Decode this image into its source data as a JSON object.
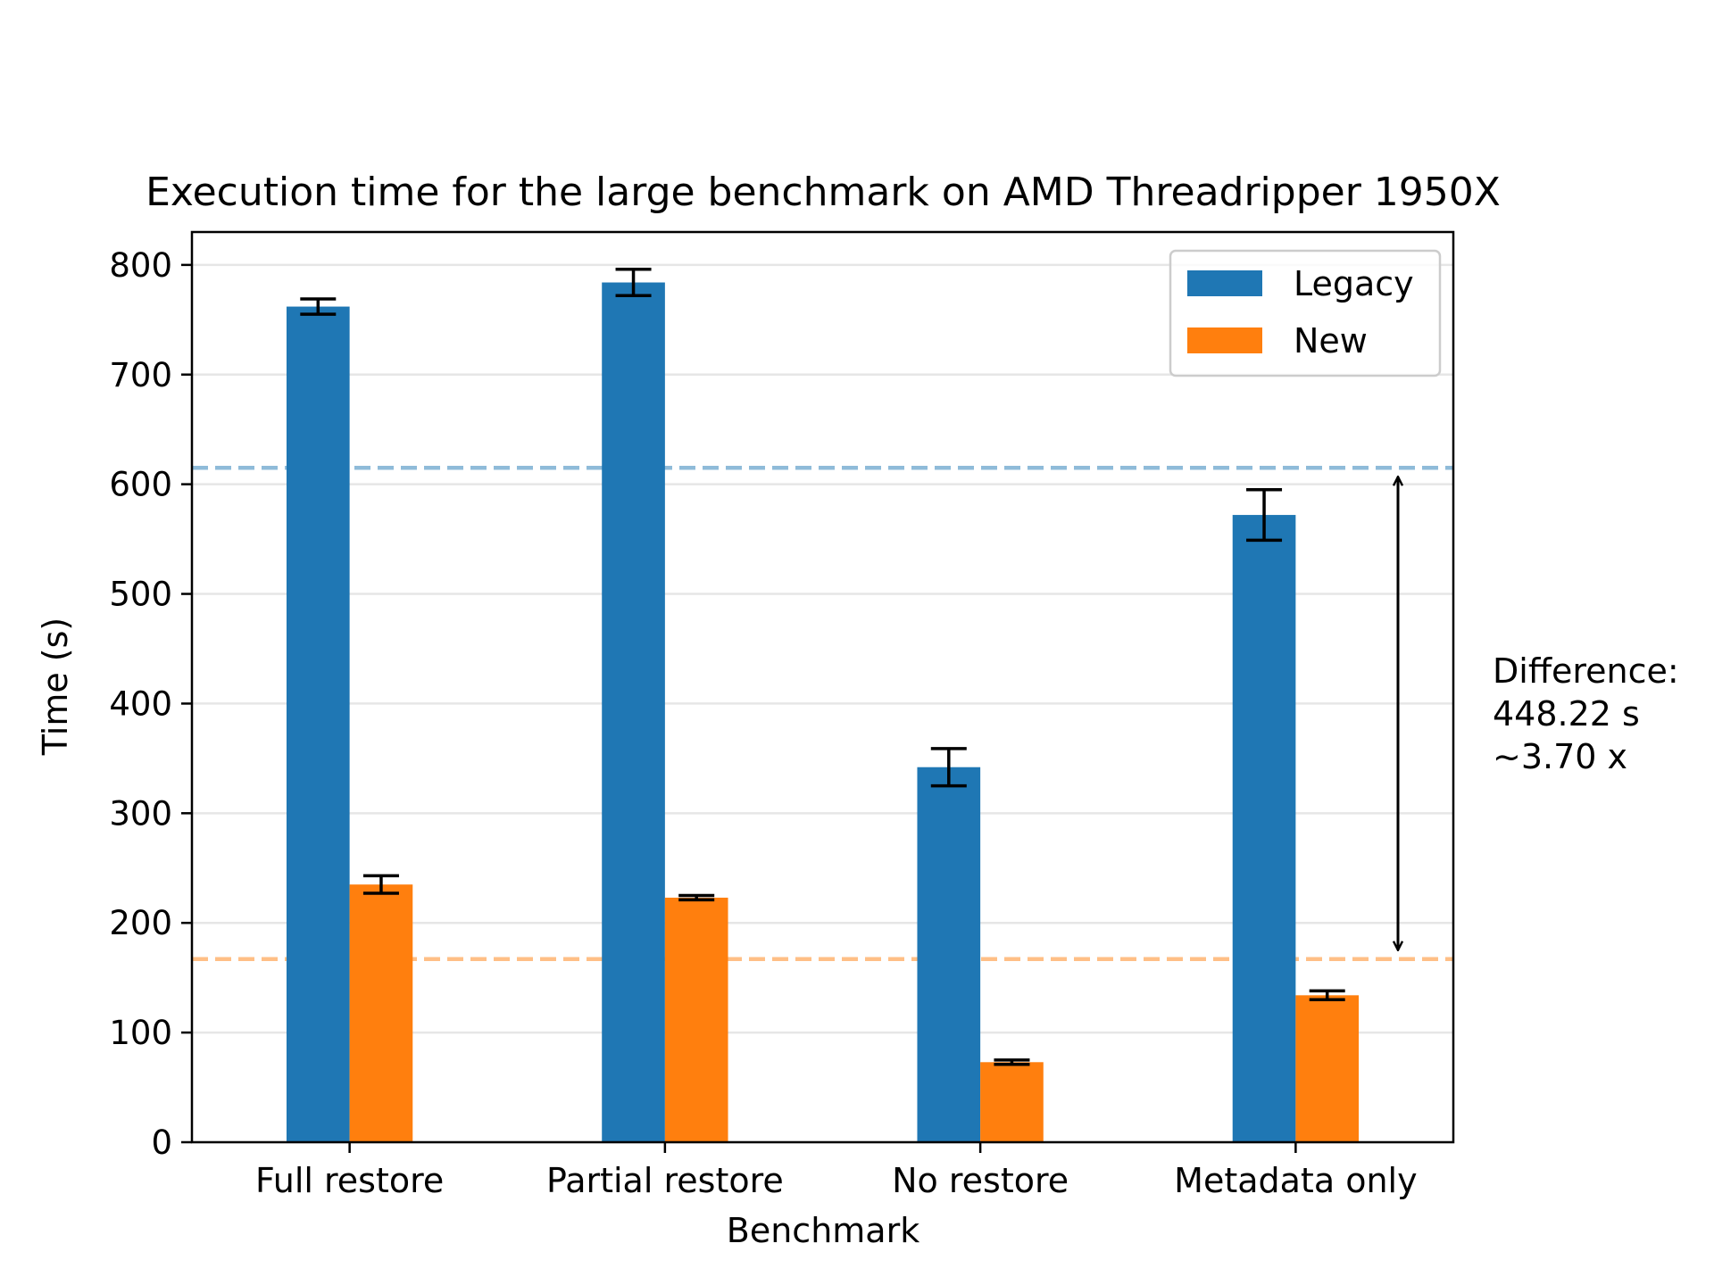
{
  "chart_data": {
    "type": "bar",
    "title": "Execution time for the large benchmark on AMD Threadripper 1950X",
    "xlabel": "Benchmark",
    "ylabel": "Time (s)",
    "categories": [
      "Full restore",
      "Partial restore",
      "No restore",
      "Metadata only"
    ],
    "series": [
      {
        "name": "Legacy",
        "color": "#1f77b4",
        "values": [
          762,
          784,
          342,
          572
        ],
        "error": [
          7,
          12,
          17,
          23
        ]
      },
      {
        "name": "New",
        "color": "#ff7f0e",
        "values": [
          235,
          223,
          73,
          134
        ],
        "error": [
          8,
          2,
          2,
          4
        ]
      }
    ],
    "ylim": [
      0,
      830
    ],
    "yticks": [
      0,
      100,
      200,
      300,
      400,
      500,
      600,
      700,
      800
    ],
    "grid": "horizontal",
    "legend_position": "top-right",
    "reference_lines": [
      {
        "series": "Legacy",
        "value": 615,
        "color": "#1f77b4",
        "style": "dashed"
      },
      {
        "series": "New",
        "value": 167,
        "color": "#ff7f0e",
        "style": "dashed"
      }
    ],
    "annotation": {
      "lines": [
        "Difference:",
        "448.22 s",
        "~3.70 x"
      ],
      "arrow_from": 615,
      "arrow_to": 167
    }
  }
}
